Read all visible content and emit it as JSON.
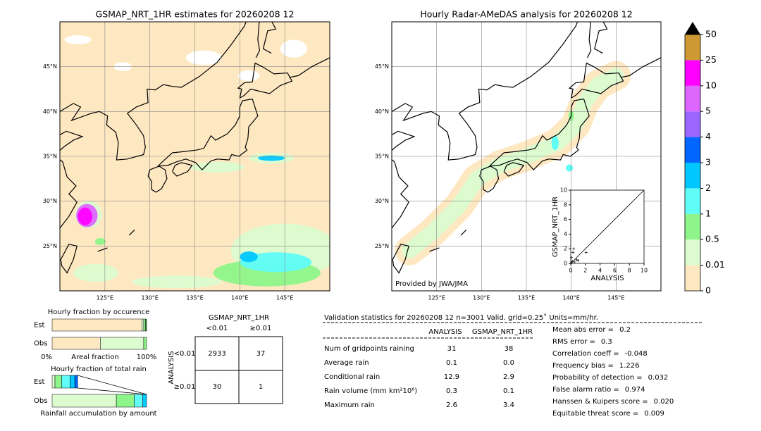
{
  "maps": [
    {
      "title": "GSMAP_NRT_1HR estimates for 20260208 12",
      "xlim": [
        120,
        150
      ],
      "ylim": [
        20,
        50
      ],
      "xticks": [
        {
          "value": 125,
          "label": "125°E"
        },
        {
          "value": 130,
          "label": "130°E"
        },
        {
          "value": 135,
          "label": "135°E"
        },
        {
          "value": 140,
          "label": "140°E"
        },
        {
          "value": 145,
          "label": "145°E"
        }
      ],
      "yticks": [
        {
          "value": 25,
          "label": "25°N"
        },
        {
          "value": 30,
          "label": "30°N"
        },
        {
          "value": 35,
          "label": "35°N"
        },
        {
          "value": 40,
          "label": "40°N"
        },
        {
          "value": 45,
          "label": "45°N"
        }
      ]
    },
    {
      "title": "Hourly Radar-AMeDAS analysis for 20260208 12",
      "xlim": [
        120,
        150
      ],
      "ylim": [
        20,
        50
      ],
      "xticks": [
        {
          "value": 125,
          "label": "125°E"
        },
        {
          "value": 130,
          "label": "130°E"
        },
        {
          "value": 135,
          "label": "135°E"
        },
        {
          "value": 140,
          "label": "140°E"
        },
        {
          "value": 145,
          "label": "145°E"
        }
      ],
      "yticks": [
        {
          "value": 25,
          "label": "25°N"
        },
        {
          "value": 30,
          "label": "30°N"
        },
        {
          "value": 35,
          "label": "35°N"
        },
        {
          "value": 40,
          "label": "40°N"
        },
        {
          "value": 45,
          "label": "45°N"
        }
      ],
      "note": "Provided by JWA/JMA"
    }
  ],
  "colorbar": {
    "levels": [
      0,
      0.01,
      0.5,
      1,
      2,
      3,
      4,
      5,
      10,
      25,
      50
    ],
    "colors": [
      "#fee8c2",
      "#dcfcd0",
      "#8ef58a",
      "#5ffcf8",
      "#00c7ff",
      "#0066ff",
      "#9b66ff",
      "#dd66ff",
      "#ff00ff",
      "#cc9933"
    ]
  },
  "scatter": {
    "type": "scatter",
    "xlabel": "ANALYSIS",
    "ylabel": "GSMAP_NRT_1HR",
    "xlim": [
      0,
      10
    ],
    "ylim": [
      0,
      10
    ],
    "xticks": [
      0,
      2,
      4,
      6,
      8,
      10
    ],
    "yticks": [
      0,
      2,
      4,
      6,
      8,
      10
    ],
    "x": [
      0.1,
      0.2,
      0.3,
      0.5,
      0.8,
      1.0,
      2.1,
      0.1,
      0.4
    ],
    "y": [
      0.1,
      0.3,
      1.5,
      0.2,
      0.5,
      0.4,
      1.5,
      0.8,
      2.0
    ]
  },
  "occurrence": {
    "title": "Hourly fraction by occurence",
    "xlabel": "Areal fraction",
    "xmin_label": "0%",
    "xmax_label": "100%",
    "series": [
      {
        "name": "Est",
        "values": [
          95,
          2,
          2,
          1
        ],
        "colors": [
          "#fee8c2",
          "#dcfcd0",
          "#8ef58a",
          "#2a8a2a"
        ]
      },
      {
        "name": "Obs",
        "values": [
          51,
          46,
          3
        ],
        "colors": [
          "#fee8c2",
          "#dcfcd0",
          "#8ef58a"
        ]
      }
    ]
  },
  "total_rain": {
    "title": "Hourly fraction of total rain",
    "xlabel": "Rainfall accumulation by amount",
    "series": [
      {
        "name": "Est",
        "values": [
          3,
          7,
          9,
          5,
          3
        ],
        "colors": [
          "#dcfcd0",
          "#8ef58a",
          "#5ffcf8",
          "#00c7ff",
          "#0066ff"
        ]
      },
      {
        "name": "Obs",
        "values": [
          68,
          19,
          9,
          4
        ],
        "colors": [
          "#dcfcd0",
          "#8ef58a",
          "#5ffcf8",
          "#00c7ff"
        ]
      }
    ]
  },
  "contingency": {
    "col_title": "GSMAP_NRT_1HR",
    "row_title": "ANALYSIS",
    "col_labels": [
      "<0.01",
      "≥0.01"
    ],
    "row_labels": [
      "<0.01",
      "≥0.01"
    ],
    "cells": [
      [
        "2933",
        "37"
      ],
      [
        "30",
        "1"
      ]
    ]
  },
  "validation": {
    "title": "Validation statistics for 20260208 12  n=3001 Valid. grid=0.25˚ Units=mm/hr.",
    "columns": [
      "ANALYSIS",
      "GSMAP_NRT_1HR"
    ],
    "rows": [
      {
        "label": "Num of gridpoints raining",
        "values": [
          "31",
          "38"
        ]
      },
      {
        "label": "Average rain",
        "values": [
          "0.1",
          "0.0"
        ]
      },
      {
        "label": "Conditional rain",
        "values": [
          "12.9",
          "2.9"
        ]
      },
      {
        "label": "Rain volume (mm km²10⁶)",
        "values": [
          "0.3",
          "0.1"
        ]
      },
      {
        "label": "Maximum rain",
        "values": [
          "2.6",
          "3.4"
        ]
      }
    ],
    "scores": [
      {
        "label": "Mean abs error =",
        "value": "0.2"
      },
      {
        "label": "RMS error =",
        "value": "0.3"
      },
      {
        "label": "Correlation coeff =",
        "value": "-0.048"
      },
      {
        "label": "Frequency bias =",
        "value": "1.226"
      },
      {
        "label": "Probability of detection =",
        "value": "0.032"
      },
      {
        "label": "False alarm ratio =",
        "value": "0.974"
      },
      {
        "label": "Hanssen & Kuipers score =",
        "value": "0.020"
      },
      {
        "label": "Equitable threat score =",
        "value": "0.009"
      }
    ]
  }
}
